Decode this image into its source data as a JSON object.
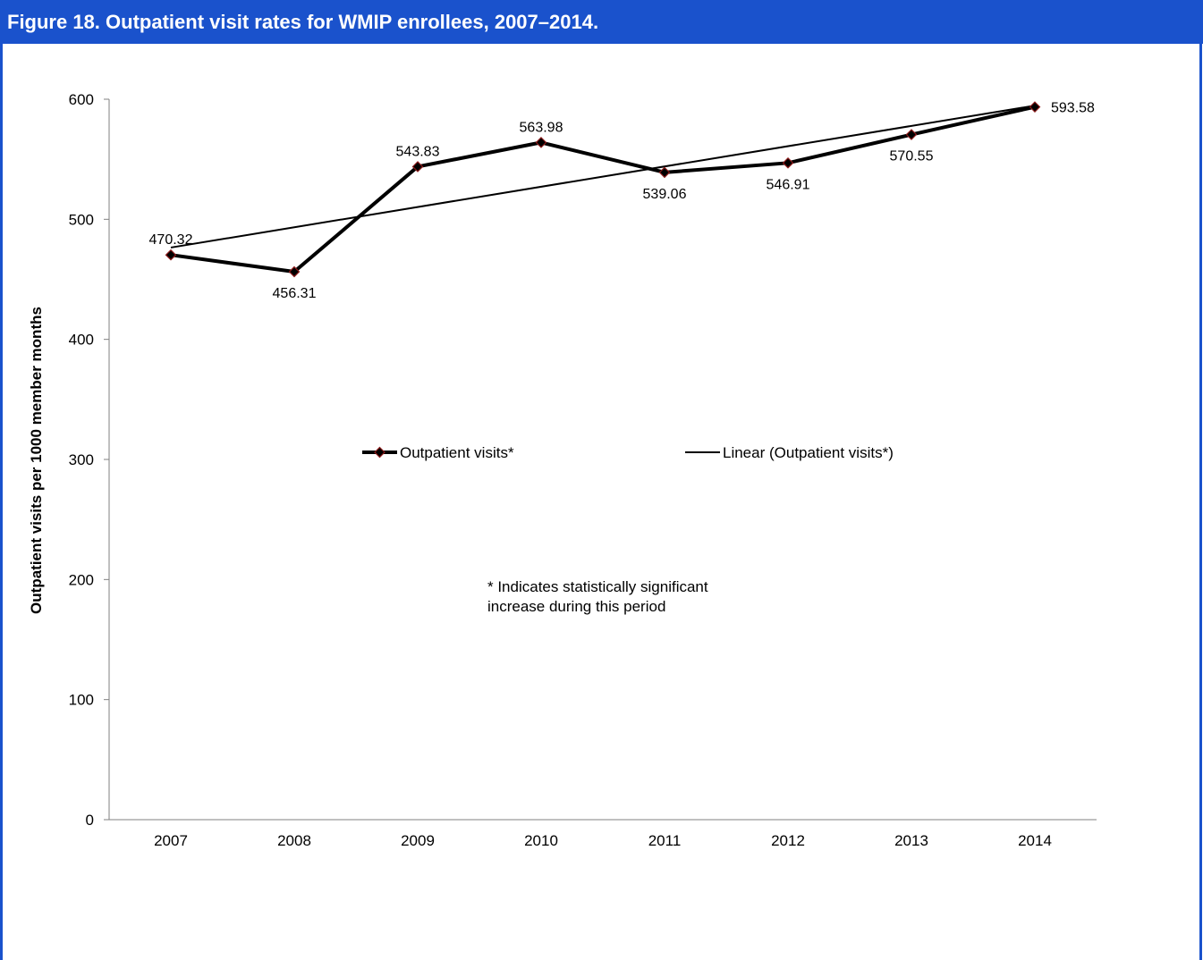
{
  "figure_title": "Figure 18. Outpatient visit rates for WMIP enrollees, 2007–2014.",
  "colors": {
    "frame": "#1a52cc",
    "line": "#000000",
    "marker_edge": "#8b1a1a"
  },
  "chart_data": {
    "type": "line",
    "title": "Figure 18. Outpatient visit rates for WMIP enrollees, 2007–2014.",
    "ylabel": "Outpatient visits per 1000 member months",
    "xlabel": "",
    "ylim": [
      0,
      600
    ],
    "yticks": [
      0,
      100,
      200,
      300,
      400,
      500,
      600
    ],
    "categories": [
      "2007",
      "2008",
      "2009",
      "2010",
      "2011",
      "2012",
      "2013",
      "2014"
    ],
    "series": [
      {
        "name": "Outpatient visits*",
        "values": [
          470.32,
          456.31,
          543.83,
          563.98,
          539.06,
          546.91,
          570.55,
          593.58
        ],
        "labels": [
          "470.32",
          "456.31",
          "543.83",
          "563.98",
          "539.06",
          "546.91",
          "570.55",
          "593.58"
        ]
      }
    ],
    "trendline": {
      "name": "Linear (Outpatient visits*)",
      "type": "linear"
    },
    "legend_position": "center",
    "grid": false,
    "annotation": [
      "* Indicates statistically significant",
      "increase during this period"
    ]
  }
}
